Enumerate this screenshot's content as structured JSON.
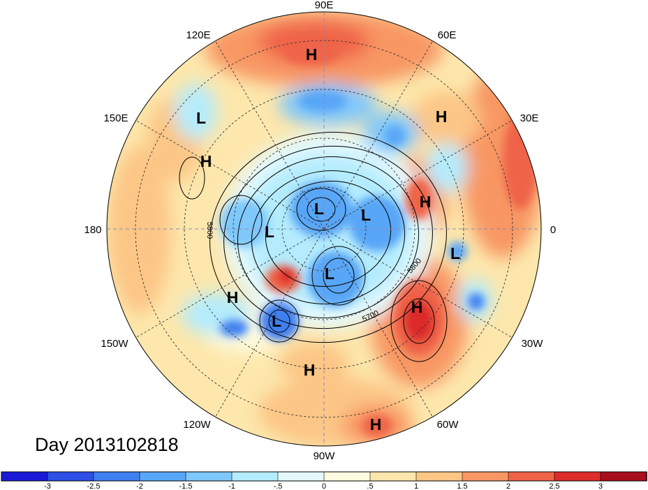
{
  "title": "Day 2013102818",
  "longitude_labels": [
    "90E",
    "60E",
    "30E",
    "0",
    "30W",
    "60W",
    "90W",
    "120W",
    "150W",
    "180",
    "150E",
    "120E"
  ],
  "pressure_centers": [
    {
      "type": "H"
    },
    {
      "type": "H"
    },
    {
      "type": "L"
    },
    {
      "type": "H"
    },
    {
      "type": "H"
    },
    {
      "type": "L"
    },
    {
      "type": "L"
    },
    {
      "type": "L"
    },
    {
      "type": "L"
    },
    {
      "type": "L"
    },
    {
      "type": "H"
    },
    {
      "type": "H"
    },
    {
      "type": "L"
    },
    {
      "type": "H"
    },
    {
      "type": "H"
    }
  ],
  "contour_labels": [
    "5800",
    "5800",
    "5700"
  ],
  "colorbar": {
    "labels": [
      "-3",
      "-2.5",
      "-2",
      "-1.5",
      "-1",
      "-.5",
      "0",
      ".5",
      "1",
      "1.5",
      "2",
      "2.5",
      "3"
    ],
    "colors": [
      "#1a1ad6",
      "#2d4fe6",
      "#3f7ff0",
      "#58a6f7",
      "#7fc8fb",
      "#b4ecfd",
      "#e4f9fe",
      "#fefbe0",
      "#fde7ac",
      "#fcc686",
      "#f89763",
      "#ef6448",
      "#dc2c2c",
      "#a80f1f"
    ]
  },
  "colors": {
    "background": "#ffffff",
    "grid": "#333333",
    "axis_dash": "#8a8ab8"
  }
}
